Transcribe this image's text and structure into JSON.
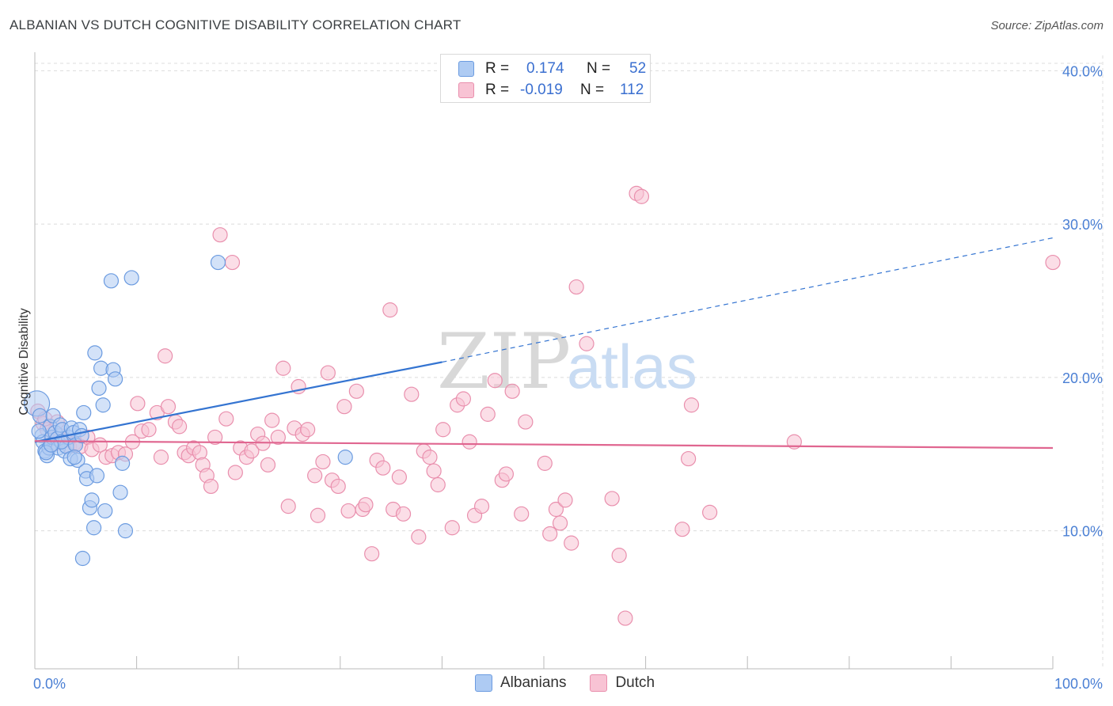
{
  "title": "ALBANIAN VS DUTCH COGNITIVE DISABILITY CORRELATION CHART",
  "source": "Source: ZipAtlas.com",
  "watermark": {
    "zip": "ZIP",
    "atlas": "atlas"
  },
  "legend_top": {
    "rows": [
      {
        "r_label": "R =",
        "r_value": "0.174",
        "n_label": "N =",
        "n_value": "52"
      },
      {
        "r_label": "R =",
        "r_value": "-0.019",
        "n_label": "N =",
        "n_value": "112"
      }
    ]
  },
  "legend_bottom": {
    "items": [
      "Albanians",
      "Dutch"
    ]
  },
  "colors": {
    "albanians_fill": "#aecbf3",
    "albanians_stroke": "#6b9be0",
    "albanians_line": "#3474d1",
    "dutch_fill": "#f8c3d4",
    "dutch_stroke": "#e98fad",
    "dutch_line": "#e06690",
    "tick_label": "#4a7fd4",
    "grid": "#dcdcdc"
  },
  "chart_data": {
    "type": "scatter",
    "title": "ALBANIAN VS DUTCH COGNITIVE DISABILITY CORRELATION CHART",
    "ylabel": "Cognitive Disability",
    "xlabel": "",
    "xlim": [
      0,
      100
    ],
    "ylim": [
      1,
      41
    ],
    "x_tick_labels": [
      "0.0%",
      "100.0%"
    ],
    "y_ticks": [
      10,
      20,
      30,
      40
    ],
    "y_tick_labels": [
      "10.0%",
      "20.0%",
      "30.0%",
      "40.0%"
    ],
    "grid": true,
    "series": [
      {
        "name": "Albanians",
        "points": [
          [
            0.2,
            18.3
          ],
          [
            0.5,
            17.5
          ],
          [
            0.7,
            16.2
          ],
          [
            0.8,
            15.8
          ],
          [
            1.0,
            15.2
          ],
          [
            1.2,
            14.9
          ],
          [
            1.4,
            15.4
          ],
          [
            1.5,
            16.8
          ],
          [
            1.7,
            16.1
          ],
          [
            1.8,
            17.5
          ],
          [
            2.0,
            16.4
          ],
          [
            2.2,
            16.0
          ],
          [
            2.3,
            15.4
          ],
          [
            2.5,
            16.9
          ],
          [
            2.7,
            16.6
          ],
          [
            2.9,
            15.2
          ],
          [
            3.1,
            15.5
          ],
          [
            3.3,
            16.1
          ],
          [
            3.5,
            14.7
          ],
          [
            3.6,
            16.7
          ],
          [
            3.8,
            16.4
          ],
          [
            4.0,
            15.6
          ],
          [
            4.2,
            14.6
          ],
          [
            4.4,
            16.6
          ],
          [
            4.6,
            16.2
          ],
          [
            4.8,
            17.7
          ],
          [
            5.0,
            13.9
          ],
          [
            5.1,
            13.4
          ],
          [
            5.4,
            11.5
          ],
          [
            5.6,
            12.0
          ],
          [
            5.8,
            10.2
          ],
          [
            5.9,
            21.6
          ],
          [
            6.1,
            13.6
          ],
          [
            6.3,
            19.3
          ],
          [
            6.5,
            20.6
          ],
          [
            6.7,
            18.2
          ],
          [
            6.9,
            11.3
          ],
          [
            7.5,
            26.3
          ],
          [
            7.7,
            20.5
          ],
          [
            7.9,
            19.9
          ],
          [
            8.4,
            12.5
          ],
          [
            8.6,
            14.4
          ],
          [
            8.9,
            10.0
          ],
          [
            9.5,
            26.5
          ],
          [
            18.0,
            27.5
          ],
          [
            30.5,
            14.8
          ],
          [
            1.1,
            15.1
          ],
          [
            0.4,
            16.5
          ],
          [
            3.9,
            14.8
          ],
          [
            2.6,
            15.8
          ],
          [
            4.7,
            8.2
          ],
          [
            1.6,
            15.6
          ]
        ]
      },
      {
        "name": "Dutch",
        "points": [
          [
            0.3,
            17.8
          ],
          [
            0.8,
            17.0
          ],
          [
            1.2,
            16.6
          ],
          [
            1.6,
            16.0
          ],
          [
            2.0,
            15.7
          ],
          [
            2.5,
            16.2
          ],
          [
            3.0,
            15.9
          ],
          [
            3.4,
            15.5
          ],
          [
            3.9,
            15.7
          ],
          [
            4.5,
            15.5
          ],
          [
            5.2,
            16.1
          ],
          [
            5.6,
            15.3
          ],
          [
            6.4,
            15.6
          ],
          [
            7.0,
            14.8
          ],
          [
            7.6,
            14.9
          ],
          [
            8.2,
            15.1
          ],
          [
            8.9,
            15.0
          ],
          [
            9.6,
            15.8
          ],
          [
            10.1,
            18.3
          ],
          [
            10.5,
            16.5
          ],
          [
            11.2,
            16.6
          ],
          [
            12.0,
            17.7
          ],
          [
            12.4,
            14.8
          ],
          [
            12.8,
            21.4
          ],
          [
            13.1,
            18.1
          ],
          [
            13.8,
            17.1
          ],
          [
            14.2,
            16.8
          ],
          [
            14.7,
            15.1
          ],
          [
            15.1,
            14.9
          ],
          [
            15.6,
            15.4
          ],
          [
            16.2,
            15.1
          ],
          [
            16.5,
            14.3
          ],
          [
            16.9,
            13.6
          ],
          [
            17.3,
            12.9
          ],
          [
            17.7,
            16.1
          ],
          [
            18.2,
            29.3
          ],
          [
            18.8,
            17.3
          ],
          [
            19.4,
            27.5
          ],
          [
            19.7,
            13.8
          ],
          [
            20.2,
            15.4
          ],
          [
            20.8,
            14.8
          ],
          [
            21.3,
            15.2
          ],
          [
            21.9,
            16.3
          ],
          [
            22.4,
            15.7
          ],
          [
            22.9,
            14.3
          ],
          [
            23.3,
            17.2
          ],
          [
            23.9,
            16.1
          ],
          [
            24.4,
            20.6
          ],
          [
            24.9,
            11.6
          ],
          [
            25.5,
            16.7
          ],
          [
            25.9,
            19.4
          ],
          [
            26.3,
            16.3
          ],
          [
            26.8,
            16.6
          ],
          [
            27.5,
            13.6
          ],
          [
            27.8,
            11.0
          ],
          [
            28.3,
            14.5
          ],
          [
            28.8,
            20.3
          ],
          [
            29.2,
            13.3
          ],
          [
            29.8,
            12.9
          ],
          [
            30.4,
            18.1
          ],
          [
            30.8,
            11.3
          ],
          [
            31.6,
            19.1
          ],
          [
            32.2,
            11.4
          ],
          [
            32.5,
            11.7
          ],
          [
            33.1,
            8.5
          ],
          [
            33.6,
            14.6
          ],
          [
            34.2,
            14.1
          ],
          [
            34.9,
            24.4
          ],
          [
            35.2,
            11.4
          ],
          [
            35.8,
            13.5
          ],
          [
            36.2,
            11.1
          ],
          [
            37.0,
            18.9
          ],
          [
            37.7,
            9.6
          ],
          [
            38.2,
            15.2
          ],
          [
            38.8,
            14.8
          ],
          [
            39.2,
            13.9
          ],
          [
            39.6,
            13.0
          ],
          [
            40.1,
            16.6
          ],
          [
            41.0,
            10.2
          ],
          [
            41.5,
            18.2
          ],
          [
            42.1,
            18.6
          ],
          [
            42.7,
            15.8
          ],
          [
            43.2,
            11.0
          ],
          [
            43.9,
            11.6
          ],
          [
            44.5,
            17.6
          ],
          [
            45.2,
            19.8
          ],
          [
            45.9,
            13.3
          ],
          [
            46.3,
            13.7
          ],
          [
            46.9,
            19.1
          ],
          [
            47.8,
            11.1
          ],
          [
            48.2,
            17.1
          ],
          [
            50.1,
            14.4
          ],
          [
            50.6,
            9.8
          ],
          [
            51.2,
            11.4
          ],
          [
            51.6,
            10.5
          ],
          [
            52.1,
            12.0
          ],
          [
            52.7,
            9.2
          ],
          [
            53.2,
            25.9
          ],
          [
            54.2,
            22.2
          ],
          [
            56.7,
            12.1
          ],
          [
            57.4,
            8.4
          ],
          [
            58.0,
            4.3
          ],
          [
            59.1,
            32.0
          ],
          [
            59.6,
            31.8
          ],
          [
            63.6,
            10.1
          ],
          [
            64.2,
            14.7
          ],
          [
            64.5,
            18.2
          ],
          [
            66.3,
            11.2
          ],
          [
            74.6,
            15.8
          ],
          [
            100.0,
            27.5
          ],
          [
            1.0,
            17.3
          ],
          [
            2.2,
            17.1
          ]
        ]
      }
    ],
    "trend_lines": [
      {
        "name": "Albanians",
        "x": [
          0,
          40,
          100
        ],
        "y": [
          15.8,
          21.0,
          29.1
        ],
        "solid_until": 40
      },
      {
        "name": "Dutch",
        "x": [
          0,
          100
        ],
        "y": [
          15.85,
          15.4
        ]
      }
    ]
  }
}
